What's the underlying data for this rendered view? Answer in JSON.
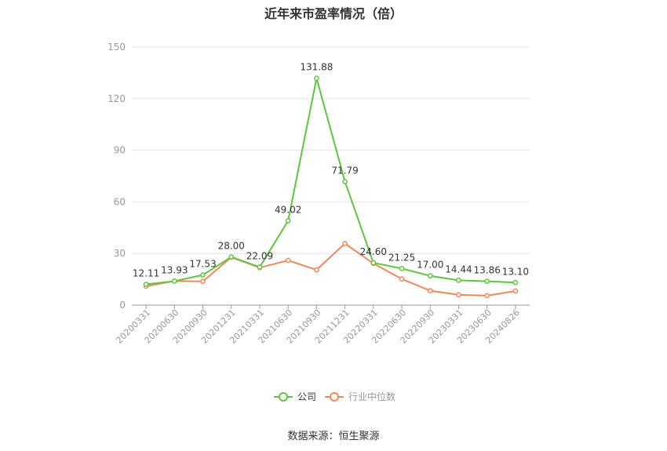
{
  "title": "近年来市盈率情况（倍）",
  "source": "数据来源：恒生聚源",
  "chart_data": {
    "type": "line",
    "title": "近年来市盈率情况（倍）",
    "xlabel": "",
    "ylabel": "",
    "ylim": [
      0,
      150
    ],
    "yticks": [
      0,
      30,
      60,
      90,
      120,
      150
    ],
    "grid": true,
    "legend_position": "bottom-center",
    "categories": [
      "20200331",
      "20200630",
      "20200930",
      "20201231",
      "20210331",
      "20210630",
      "20210930",
      "20211231",
      "20220331",
      "20220630",
      "20220930",
      "20230331",
      "20230630",
      "20240826"
    ],
    "series": [
      {
        "name": "公司",
        "color": "#5cc73c",
        "values": [
          12.11,
          13.93,
          17.53,
          28.0,
          22.09,
          49.02,
          131.88,
          71.79,
          24.6,
          21.25,
          17.0,
          14.44,
          13.86,
          13.1
        ],
        "labels": [
          "12.11",
          "13.93",
          "17.53",
          "28.00",
          "22.09",
          "49.02",
          "131.88",
          "71.79",
          "24.60",
          "21.25",
          "17.00",
          "14.44",
          "13.86",
          "13.10"
        ]
      },
      {
        "name": "行业中位数",
        "color": "#f0885a",
        "values": [
          11.0,
          14.0,
          13.8,
          27.8,
          21.8,
          26.0,
          20.5,
          35.8,
          24.2,
          15.2,
          8.4,
          6.0,
          5.5,
          8.2
        ]
      }
    ]
  }
}
